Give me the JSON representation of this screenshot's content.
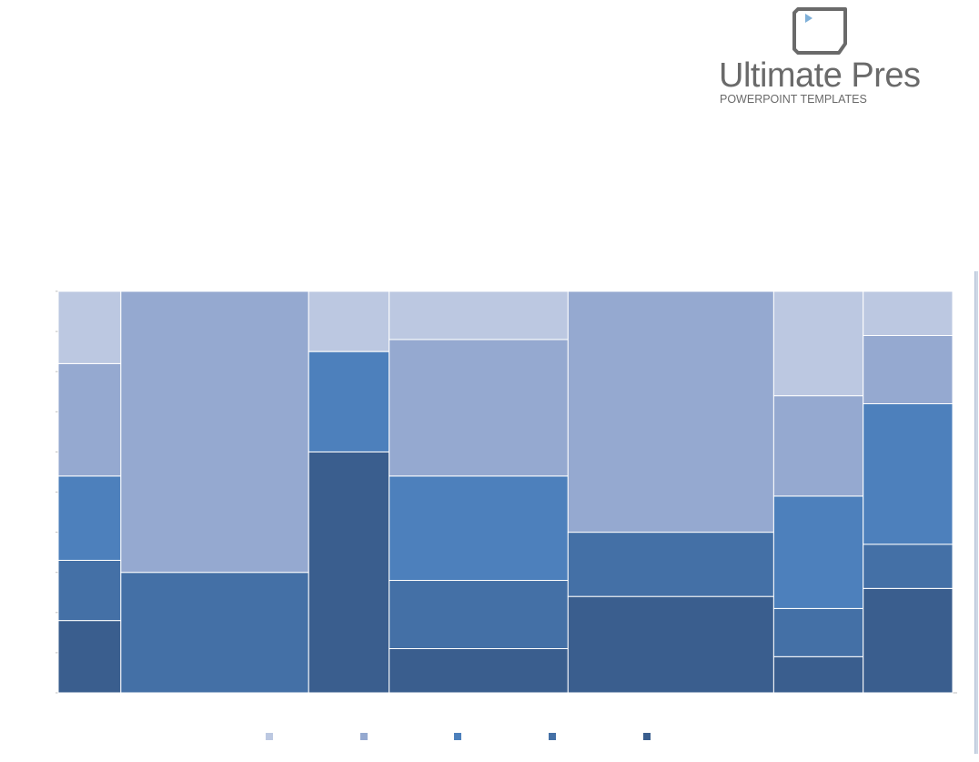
{
  "logo": {
    "title": "Ultimate Pres",
    "subtitle": "POWERPOINT TEMPLATES",
    "icon": "play-frame-icon",
    "color": "#6a6a6a",
    "accent": "#7fb0d9"
  },
  "chart_data": {
    "type": "mosaic",
    "orientation": "vertical stacked, variable-width columns",
    "grid": false,
    "legend_position": "bottom",
    "stack_order_bottom_to_top": [
      "s5",
      "s4",
      "s3",
      "s2",
      "s1"
    ],
    "series": [
      {
        "key": "s1",
        "name": "",
        "color": "#bcc8e1"
      },
      {
        "key": "s2",
        "name": "",
        "color": "#95a9d0"
      },
      {
        "key": "s3",
        "name": "",
        "color": "#4d80bc"
      },
      {
        "key": "s4",
        "name": "",
        "color": "#4470a6"
      },
      {
        "key": "s5",
        "name": "",
        "color": "#3a5e8e"
      }
    ],
    "columns": [
      {
        "width": 7.0,
        "s5": 18,
        "s4": 15,
        "s3": 21,
        "s2": 28,
        "s1": 18
      },
      {
        "width": 21.0,
        "s5": 0,
        "s4": 30,
        "s3": 0,
        "s2": 70,
        "s1": 0
      },
      {
        "width": 9.0,
        "s5": 60,
        "s4": 0,
        "s3": 25,
        "s2": 0,
        "s1": 15
      },
      {
        "width": 20.0,
        "s5": 11,
        "s4": 17,
        "s3": 26,
        "s2": 34,
        "s1": 12
      },
      {
        "width": 23.0,
        "s5": 24,
        "s4": 16,
        "s3": 0,
        "s2": 60,
        "s1": 0
      },
      {
        "width": 10.0,
        "s5": 9,
        "s4": 12,
        "s3": 28,
        "s2": 25,
        "s1": 26
      },
      {
        "width": 10.0,
        "s5": 26,
        "s4": 11,
        "s3": 35,
        "s2": 17,
        "s1": 11
      }
    ],
    "ylim": [
      0,
      100
    ],
    "tick_count": 10
  }
}
